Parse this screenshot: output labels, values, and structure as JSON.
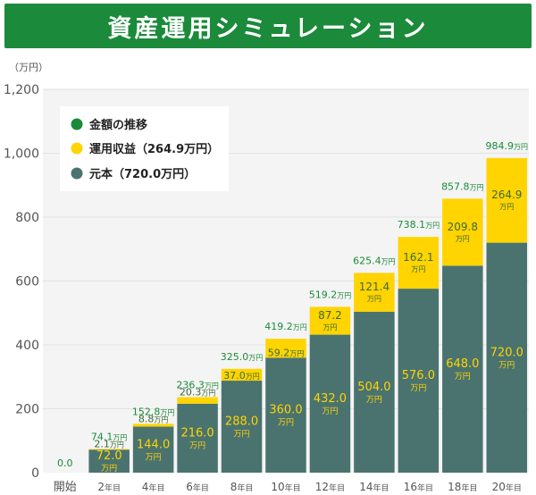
{
  "header": {
    "title": "資産運用シミュレーション"
  },
  "chart_data": {
    "type": "bar",
    "stacked": true,
    "unit_label": "（万円）",
    "unit_suffix": "万円",
    "categories": [
      {
        "num": "",
        "suffix": "開始"
      },
      {
        "num": "2",
        "suffix": "年目"
      },
      {
        "num": "4",
        "suffix": "年目"
      },
      {
        "num": "6",
        "suffix": "年目"
      },
      {
        "num": "8",
        "suffix": "年目"
      },
      {
        "num": "10",
        "suffix": "年目"
      },
      {
        "num": "12",
        "suffix": "年目"
      },
      {
        "num": "14",
        "suffix": "年目"
      },
      {
        "num": "16",
        "suffix": "年目"
      },
      {
        "num": "18",
        "suffix": "年目"
      },
      {
        "num": "20",
        "suffix": "年目"
      }
    ],
    "series": [
      {
        "name": "元本（720.0万円）",
        "color": "#4a7370",
        "label_color": "#ffd400",
        "values": [
          0,
          72.0,
          144.0,
          216.0,
          288.0,
          360.0,
          432.0,
          504.0,
          576.0,
          648.0,
          720.0
        ]
      },
      {
        "name": "運用収益（264.9万円）",
        "color": "#ffd400",
        "label_color": "#3a6b35",
        "values": [
          0,
          2.1,
          8.8,
          20.3,
          37.0,
          59.2,
          87.2,
          121.4,
          162.1,
          209.8,
          264.9
        ]
      }
    ],
    "totals_name": "金額の推移",
    "totals_color": "#1b8a3a",
    "totals": [
      "0.0",
      "74.1",
      "152.8",
      "236.3",
      "325.0",
      "419.2",
      "519.2",
      "625.4",
      "738.1",
      "857.8",
      "984.9"
    ],
    "principal_labels": [
      "",
      "72.0",
      "144.0",
      "216.0",
      "288.0",
      "360.0",
      "432.0",
      "504.0",
      "576.0",
      "648.0",
      "720.0"
    ],
    "profit_labels": [
      "",
      "2.1",
      "8.8",
      "20.3",
      "37.0",
      "59.2",
      "87.2",
      "121.4",
      "162.1",
      "209.8",
      "264.9"
    ],
    "yticks": [
      "0",
      "200",
      "400",
      "600",
      "800",
      "1,000",
      "1,200"
    ],
    "ylim": [
      0,
      1200
    ],
    "legend_position": "top-left",
    "plot_background": "#f4f4f4"
  }
}
